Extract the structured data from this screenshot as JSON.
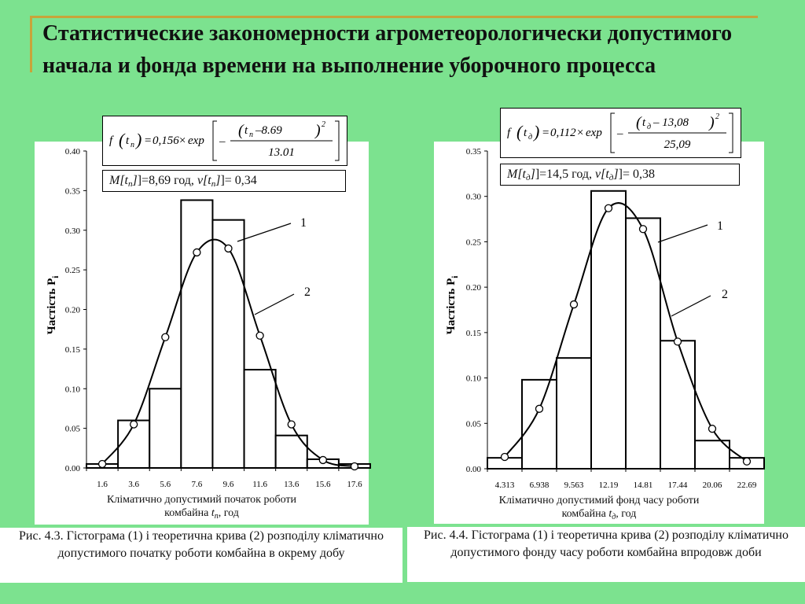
{
  "title": "Статистические закономерности агрометеорологически допустимого начала и фонда времени на  выполнение уборочного процесса",
  "colors": {
    "background": "#7ce28f",
    "accent": "#c8a43a",
    "panel": "#ffffff"
  },
  "chart_data": [
    {
      "type": "bar",
      "formula": {
        "lhs_f": "f",
        "lhs_var": "t",
        "lhs_sub": "п",
        "coef": "0,156",
        "op": "×",
        "fn": "exp",
        "minus": "–",
        "numer_var": "t",
        "numer_sub": "п",
        "numer_rest": "–8.69",
        "power": "2",
        "denom": "13.01"
      },
      "stats": {
        "m_label": "M[t",
        "m_sub": "п",
        "m_rest": "]=8,69 год, ",
        "v_label": "v[t",
        "v_sub": "п",
        "v_rest": "]= 0,34"
      },
      "ylabel": "Частість P",
      "ylabel_sub": "i",
      "ylim": [
        0,
        0.4
      ],
      "y_ticks": [
        "0.00",
        "0.05",
        "0.10",
        "0.15",
        "0.20",
        "0.25",
        "0.30",
        "0.35",
        "0.40"
      ],
      "categories": [
        "1.6",
        "3.6",
        "5.6",
        "7.6",
        "9.6",
        "11.6",
        "13.6",
        "15.6",
        "17.6"
      ],
      "series": [
        {
          "values": [
            0.005,
            0.06,
            0.1,
            0.338,
            0.313,
            0.124,
            0.041,
            0.011,
            0.005
          ]
        },
        {
          "values": [
            0.005,
            0.055,
            0.165,
            0.272,
            0.277,
            0.167,
            0.055,
            0.01,
            0.002
          ]
        }
      ],
      "callouts": [
        "1",
        "2"
      ],
      "xlabel_line1": "Кліматично допустимий початок роботи",
      "xlabel_line2_pre": "комбайна ",
      "xlabel_var": "t",
      "xlabel_sub": "п",
      "xlabel_line2_post": ", год",
      "caption": "Рис. 4.3. Гістограма (1) і теоретична крива (2) розподілу кліматично допустимого початку роботи комбайна в окрему добу"
    },
    {
      "type": "bar",
      "formula": {
        "lhs_f": "f",
        "lhs_var": "t",
        "lhs_sub": "д",
        "coef": "0,112",
        "op": "×",
        "fn": "exp",
        "minus": "–",
        "numer_var": "t",
        "numer_sub": "д",
        "numer_rest": "– 13,08",
        "power": "2",
        "denom": "25,09"
      },
      "stats": {
        "m_label": "M[t",
        "m_sub": "д",
        "m_rest": "]=14,5 год, ",
        "v_label": "v[t",
        "v_sub": "д",
        "v_rest": "]= 0,38"
      },
      "ylabel": "Частість P",
      "ylabel_sub": "i",
      "ylim": [
        0,
        0.35
      ],
      "y_ticks": [
        "0.00",
        "0.05",
        "0.10",
        "0.15",
        "0.20",
        "0.25",
        "0.30",
        "0.35"
      ],
      "categories": [
        "4.313",
        "6.938",
        "9.563",
        "12.19",
        "14.81",
        "17.44",
        "20.06",
        "22.69"
      ],
      "series": [
        {
          "values": [
            0.012,
            0.098,
            0.122,
            0.306,
            0.276,
            0.141,
            0.031,
            0.012
          ]
        },
        {
          "values": [
            0.013,
            0.066,
            0.181,
            0.287,
            0.264,
            0.14,
            0.044,
            0.008
          ]
        }
      ],
      "callouts": [
        "1",
        "2"
      ],
      "xlabel_line1": "Кліматично допустимий фонд часу роботи",
      "xlabel_line2_pre": "комбайна ",
      "xlabel_var": "t",
      "xlabel_sub": "д",
      "xlabel_line2_post": ", год",
      "caption": "Рис. 4.4. Гістограма (1) і теоретична крива (2) розподілу кліматично допустимого фонду часу роботи комбайна впродовж доби"
    }
  ]
}
